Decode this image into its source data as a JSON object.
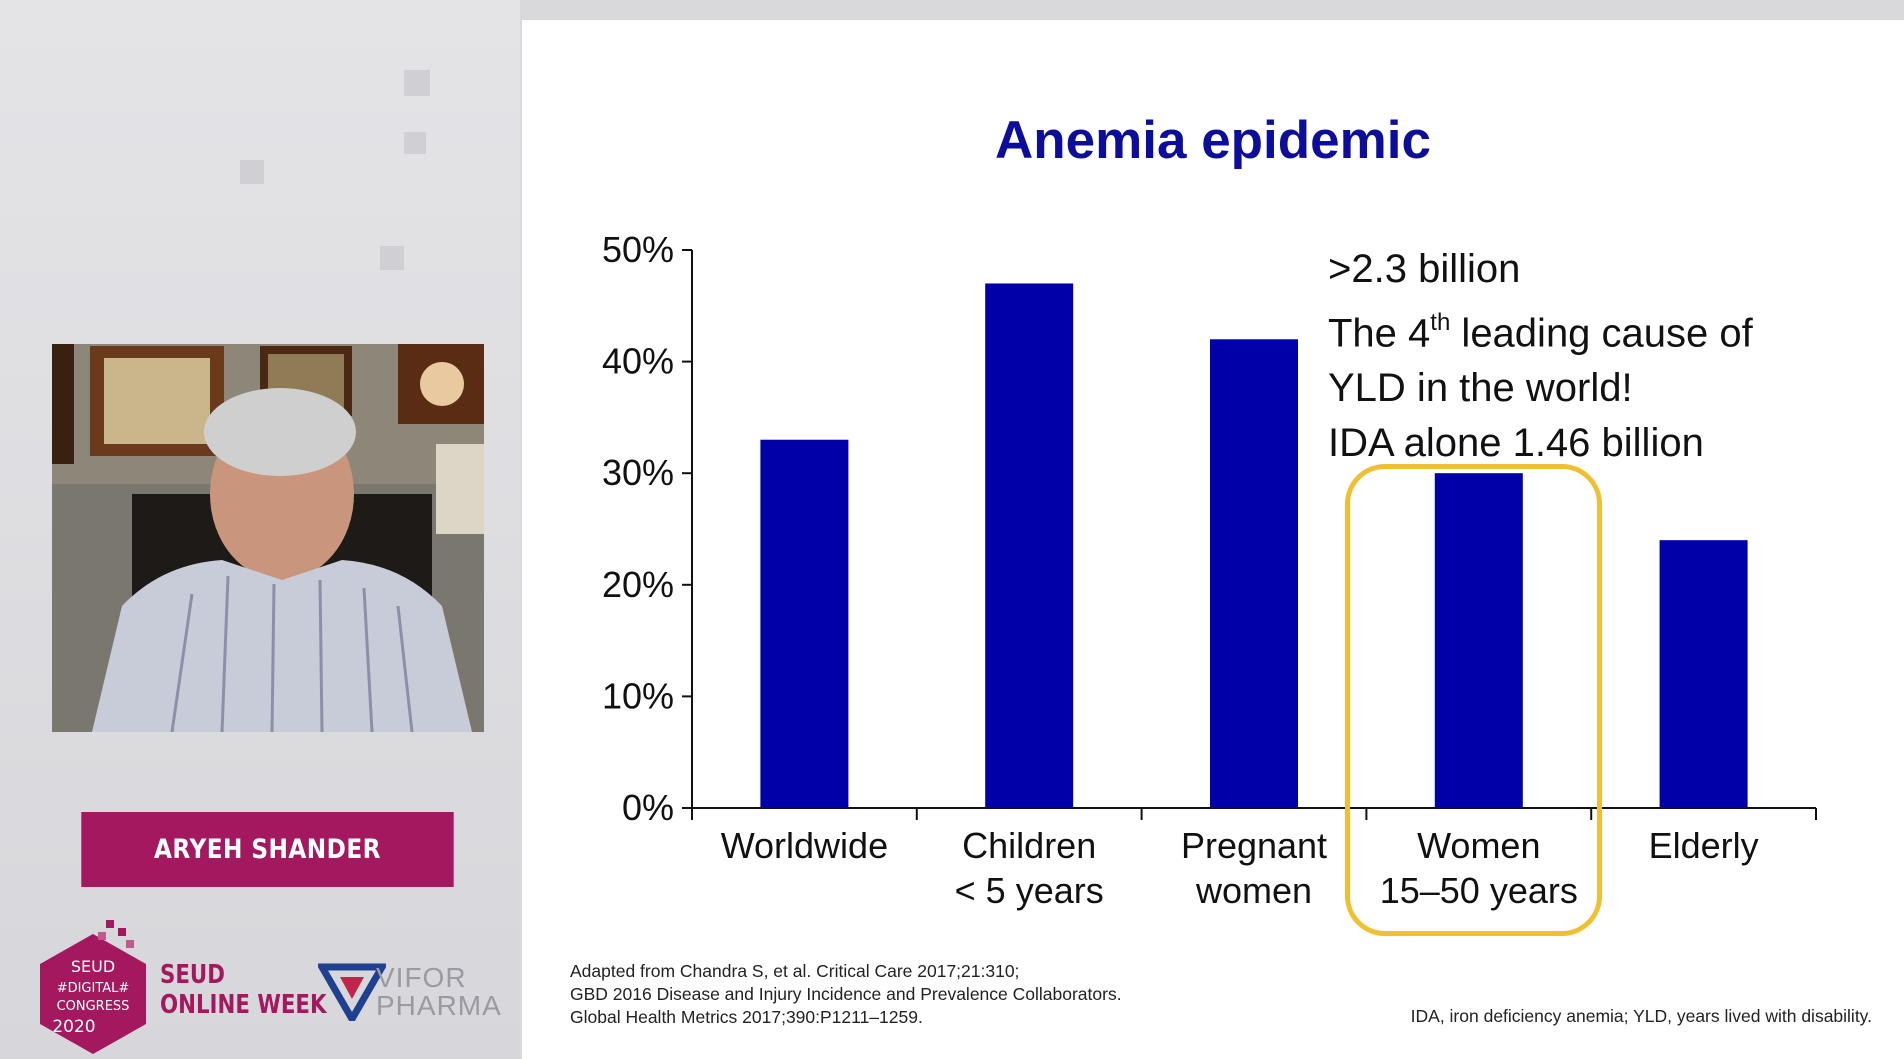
{
  "speaker": {
    "name": "ARYEH SHANDER"
  },
  "branding": {
    "seud_logo_text": [
      "SEUD",
      "#DIGITAL#",
      "CONGRESS",
      "2020"
    ],
    "seud_line1": "SEUD",
    "seud_line2": "ONLINE WEEK",
    "vifor_line1": "VIFOR",
    "vifor_line2": "PHARMA",
    "accent_color": "#a3185e"
  },
  "slide": {
    "title": "Anemia epidemic",
    "annotation": {
      "line1": ">2.3 billion",
      "line2_pre": "The 4",
      "line2_sup": "th",
      "line2_post": " leading cause of",
      "line3": "YLD in the world!",
      "line4": "IDA alone 1.46 billion"
    },
    "source": [
      "Adapted from Chandra S, et al. Critical Care 2017;21:310;",
      "GBD 2016 Disease and Injury Incidence and Prevalence Collaborators.",
      "Global Health Metrics 2017;390:P1211–1259."
    ],
    "abbreviations": "IDA, iron deficiency anemia; YLD, years lived with disability."
  },
  "chart_data": {
    "type": "bar",
    "title": "Anemia epidemic",
    "categories": [
      [
        "Worldwide"
      ],
      [
        "Children",
        "< 5 years"
      ],
      [
        "Pregnant",
        "women"
      ],
      [
        "Women",
        "15–50 years"
      ],
      [
        "Elderly"
      ]
    ],
    "values": [
      33,
      47,
      42,
      30,
      24
    ],
    "unit": "%",
    "ylim": [
      0,
      50
    ],
    "yticks": [
      "0%",
      "10%",
      "20%",
      "30%",
      "40%",
      "50%"
    ],
    "highlighted_category": "Women 15–50 years",
    "bar_color": "#0000a8",
    "highlight_color": "#f0c033",
    "grid": false,
    "legend": "none"
  }
}
